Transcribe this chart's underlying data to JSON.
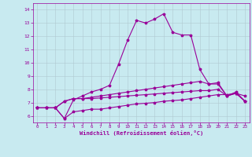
{
  "background_color": "#c8eaf0",
  "line_color": "#990099",
  "grid_color": "#b0c8d0",
  "xlim": [
    -0.5,
    23.5
  ],
  "ylim": [
    5.5,
    14.5
  ],
  "yticks": [
    6,
    7,
    8,
    9,
    10,
    11,
    12,
    13,
    14
  ],
  "xticks": [
    0,
    1,
    2,
    3,
    4,
    5,
    6,
    7,
    8,
    9,
    10,
    11,
    12,
    13,
    14,
    15,
    16,
    17,
    18,
    19,
    20,
    21,
    22,
    23
  ],
  "xlabel": "Windchill (Refroidissement éolien,°C)",
  "line1_x": [
    0,
    1,
    2,
    3,
    4,
    5,
    6,
    7,
    8,
    9,
    10,
    11,
    12,
    13,
    14,
    15,
    16,
    17,
    18,
    19,
    20,
    21,
    22,
    23
  ],
  "line1_y": [
    6.6,
    6.6,
    6.6,
    5.8,
    6.3,
    6.4,
    6.5,
    6.5,
    6.6,
    6.7,
    6.8,
    6.9,
    6.95,
    7.0,
    7.1,
    7.15,
    7.2,
    7.3,
    7.4,
    7.5,
    7.6,
    7.6,
    7.7,
    7.5
  ],
  "line2_x": [
    0,
    1,
    2,
    3,
    4,
    5,
    6,
    7,
    8,
    9,
    10,
    11,
    12,
    13,
    14,
    15,
    16,
    17,
    18,
    19,
    20,
    21,
    22,
    23
  ],
  "line2_y": [
    6.6,
    6.6,
    6.6,
    7.1,
    7.3,
    7.3,
    7.3,
    7.35,
    7.4,
    7.45,
    7.5,
    7.55,
    7.6,
    7.65,
    7.7,
    7.75,
    7.8,
    7.85,
    7.9,
    7.9,
    8.0,
    7.5,
    7.7,
    7.1
  ],
  "line3_x": [
    0,
    1,
    2,
    3,
    4,
    5,
    6,
    7,
    8,
    9,
    10,
    11,
    12,
    13,
    14,
    15,
    16,
    17,
    18,
    19,
    20,
    21,
    22,
    23
  ],
  "line3_y": [
    6.6,
    6.6,
    6.6,
    7.1,
    7.3,
    7.3,
    7.4,
    7.5,
    7.6,
    7.7,
    7.8,
    7.9,
    8.0,
    8.1,
    8.2,
    8.3,
    8.4,
    8.5,
    8.6,
    8.4,
    8.5,
    7.5,
    7.8,
    7.1
  ],
  "line4_x": [
    0,
    1,
    2,
    3,
    4,
    5,
    6,
    7,
    8,
    9,
    10,
    11,
    12,
    13,
    14,
    15,
    16,
    17,
    18,
    19,
    20,
    21,
    22,
    23
  ],
  "line4_y": [
    6.6,
    6.6,
    6.6,
    5.8,
    7.2,
    7.5,
    7.8,
    8.0,
    8.3,
    9.9,
    11.7,
    13.2,
    13.0,
    13.3,
    13.7,
    12.3,
    12.1,
    12.1,
    9.5,
    8.4,
    8.4,
    7.5,
    7.7,
    7.1
  ]
}
